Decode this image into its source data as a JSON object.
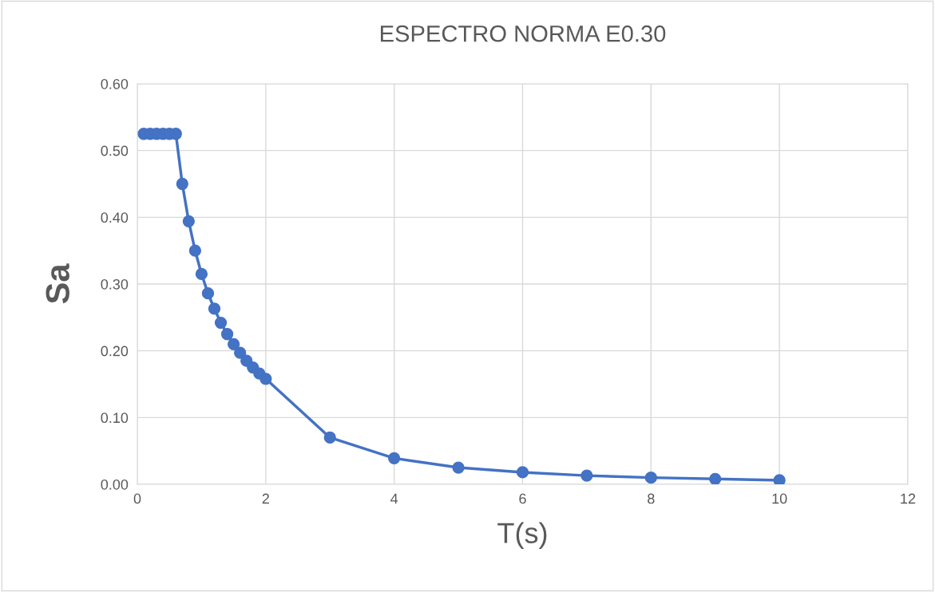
{
  "chart_data": {
    "type": "line",
    "title": "ESPECTRO NORMA E0.30",
    "xlabel": "T(s)",
    "ylabel": "Sa",
    "xlim": [
      0,
      12
    ],
    "xticks": [
      0,
      2,
      4,
      6,
      8,
      10,
      12
    ],
    "ylim": [
      0,
      0.6
    ],
    "yticks": [
      {
        "value": 0,
        "label": "0.00"
      },
      {
        "value": 0.1,
        "label": "0.10"
      },
      {
        "value": 0.2,
        "label": "0.20"
      },
      {
        "value": 0.3,
        "label": "0.30"
      },
      {
        "value": 0.4,
        "label": "0.40"
      },
      {
        "value": 0.5,
        "label": "0.50"
      },
      {
        "value": 0.6,
        "label": "0.60"
      }
    ],
    "grid": true,
    "legend": false,
    "marker": "circle",
    "line_style": "solid",
    "series": [
      {
        "color": "#4472c4",
        "x": [
          0.1,
          0.2,
          0.3,
          0.4,
          0.5,
          0.6,
          0.7,
          0.8,
          0.9,
          1.0,
          1.1,
          1.2,
          1.3,
          1.4,
          1.5,
          1.6,
          1.7,
          1.8,
          1.9,
          2.0,
          3,
          4,
          5,
          6,
          7,
          8,
          9,
          10
        ],
        "values": [
          0.525,
          0.525,
          0.525,
          0.525,
          0.525,
          0.525,
          0.45,
          0.394,
          0.35,
          0.315,
          0.286,
          0.263,
          0.242,
          0.225,
          0.21,
          0.197,
          0.185,
          0.175,
          0.166,
          0.158,
          0.07,
          0.039,
          0.025,
          0.018,
          0.013,
          0.01,
          0.008,
          0.006
        ]
      }
    ]
  }
}
